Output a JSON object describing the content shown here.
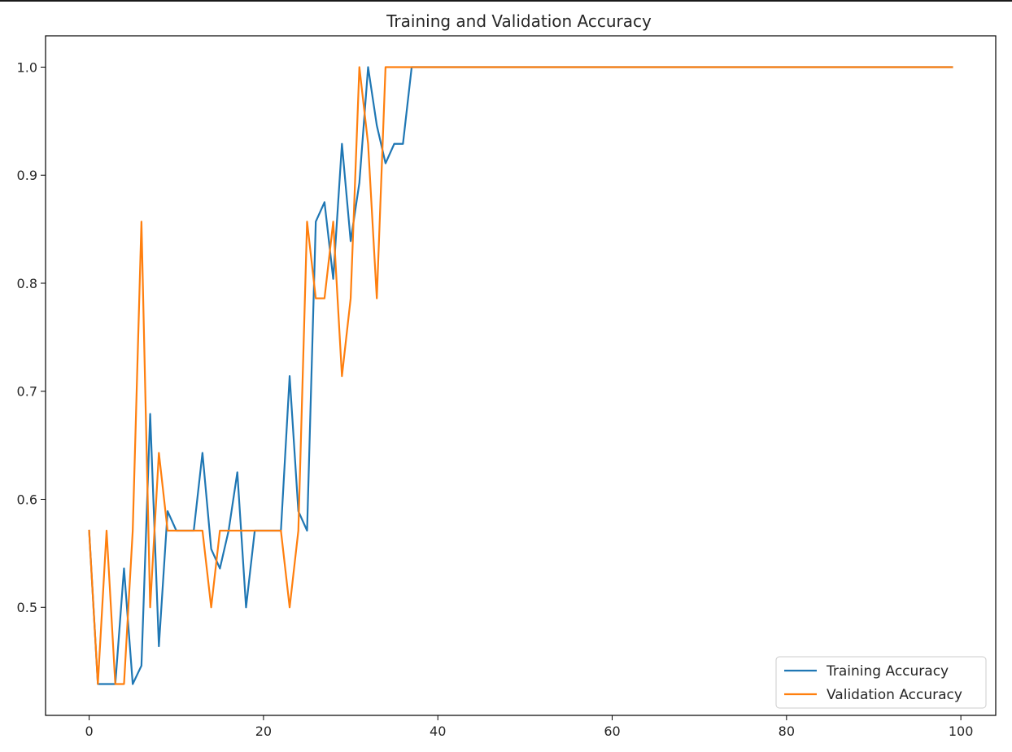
{
  "chart_data": {
    "type": "line",
    "title": "Training and Validation Accuracy",
    "xlabel": "",
    "ylabel": "",
    "xlim": [
      -5,
      104
    ],
    "ylim": [
      0.4,
      1.029
    ],
    "xticks": [
      0,
      20,
      40,
      60,
      80,
      100
    ],
    "yticks": [
      0.5,
      0.6,
      0.7,
      0.8,
      0.9,
      1.0
    ],
    "xtick_labels": [
      "0",
      "20",
      "40",
      "60",
      "80",
      "100"
    ],
    "ytick_labels": [
      "0.5",
      "0.6",
      "0.7",
      "0.8",
      "0.9",
      "1.0"
    ],
    "grid": false,
    "legend_position": "lower-right",
    "series": [
      {
        "name": "Training Accuracy",
        "color": "#1f77b4",
        "x": [
          0,
          1,
          2,
          3,
          4,
          5,
          6,
          7,
          8,
          9,
          10,
          11,
          12,
          13,
          14,
          15,
          16,
          17,
          18,
          19,
          20,
          21,
          22,
          23,
          24,
          25,
          26,
          27,
          28,
          29,
          30,
          31,
          32,
          33,
          34,
          35,
          36,
          37,
          38,
          39,
          40,
          41,
          42,
          43,
          44,
          45,
          46,
          47,
          48,
          49,
          50,
          51,
          52,
          53,
          54,
          55,
          56,
          57,
          58,
          59,
          60,
          61,
          62,
          63,
          64,
          65,
          66,
          67,
          68,
          69,
          70,
          71,
          72,
          73,
          74,
          75,
          76,
          77,
          78,
          79,
          80,
          81,
          82,
          83,
          84,
          85,
          86,
          87,
          88,
          89,
          90,
          91,
          92,
          93,
          94,
          95,
          96,
          97,
          98,
          99
        ],
        "values": [
          0.571,
          0.429,
          0.429,
          0.429,
          0.536,
          0.429,
          0.446,
          0.679,
          0.464,
          0.589,
          0.571,
          0.571,
          0.571,
          0.643,
          0.554,
          0.536,
          0.571,
          0.625,
          0.5,
          0.571,
          0.571,
          0.571,
          0.571,
          0.714,
          0.589,
          0.571,
          0.857,
          0.875,
          0.804,
          0.929,
          0.839,
          0.893,
          1.0,
          0.946,
          0.911,
          0.929,
          0.929,
          1.0,
          1.0,
          1.0,
          1.0,
          1.0,
          1.0,
          1.0,
          1.0,
          1.0,
          1.0,
          1.0,
          1.0,
          1.0,
          1.0,
          1.0,
          1.0,
          1.0,
          1.0,
          1.0,
          1.0,
          1.0,
          1.0,
          1.0,
          1.0,
          1.0,
          1.0,
          1.0,
          1.0,
          1.0,
          1.0,
          1.0,
          1.0,
          1.0,
          1.0,
          1.0,
          1.0,
          1.0,
          1.0,
          1.0,
          1.0,
          1.0,
          1.0,
          1.0,
          1.0,
          1.0,
          1.0,
          1.0,
          1.0,
          1.0,
          1.0,
          1.0,
          1.0,
          1.0,
          1.0,
          1.0,
          1.0,
          1.0,
          1.0,
          1.0,
          1.0,
          1.0,
          1.0,
          1.0
        ]
      },
      {
        "name": "Validation Accuracy",
        "color": "#ff7f0e",
        "x": [
          0,
          1,
          2,
          3,
          4,
          5,
          6,
          7,
          8,
          9,
          10,
          11,
          12,
          13,
          14,
          15,
          16,
          17,
          18,
          19,
          20,
          21,
          22,
          23,
          24,
          25,
          26,
          27,
          28,
          29,
          30,
          31,
          32,
          33,
          34,
          35,
          36,
          37,
          38,
          39,
          40,
          41,
          42,
          43,
          44,
          45,
          46,
          47,
          48,
          49,
          50,
          51,
          52,
          53,
          54,
          55,
          56,
          57,
          58,
          59,
          60,
          61,
          62,
          63,
          64,
          65,
          66,
          67,
          68,
          69,
          70,
          71,
          72,
          73,
          74,
          75,
          76,
          77,
          78,
          79,
          80,
          81,
          82,
          83,
          84,
          85,
          86,
          87,
          88,
          89,
          90,
          91,
          92,
          93,
          94,
          95,
          96,
          97,
          98,
          99
        ],
        "values": [
          0.571,
          0.429,
          0.571,
          0.429,
          0.429,
          0.571,
          0.857,
          0.5,
          0.643,
          0.571,
          0.571,
          0.571,
          0.571,
          0.571,
          0.5,
          0.571,
          0.571,
          0.571,
          0.571,
          0.571,
          0.571,
          0.571,
          0.571,
          0.5,
          0.571,
          0.857,
          0.786,
          0.786,
          0.857,
          0.714,
          0.786,
          1.0,
          0.929,
          0.786,
          1.0,
          1.0,
          1.0,
          1.0,
          1.0,
          1.0,
          1.0,
          1.0,
          1.0,
          1.0,
          1.0,
          1.0,
          1.0,
          1.0,
          1.0,
          1.0,
          1.0,
          1.0,
          1.0,
          1.0,
          1.0,
          1.0,
          1.0,
          1.0,
          1.0,
          1.0,
          1.0,
          1.0,
          1.0,
          1.0,
          1.0,
          1.0,
          1.0,
          1.0,
          1.0,
          1.0,
          1.0,
          1.0,
          1.0,
          1.0,
          1.0,
          1.0,
          1.0,
          1.0,
          1.0,
          1.0,
          1.0,
          1.0,
          1.0,
          1.0,
          1.0,
          1.0,
          1.0,
          1.0,
          1.0,
          1.0,
          1.0,
          1.0,
          1.0,
          1.0,
          1.0,
          1.0,
          1.0,
          1.0,
          1.0,
          1.0
        ]
      }
    ]
  }
}
